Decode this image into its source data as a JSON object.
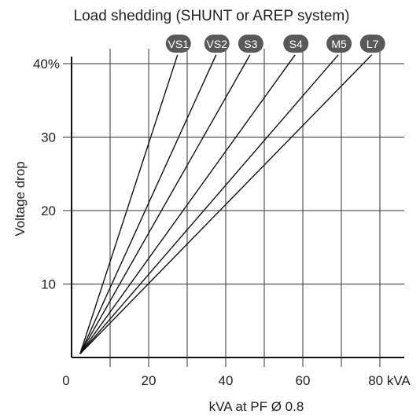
{
  "chart_data": {
    "type": "line",
    "title": "Load shedding (SHUNT or AREP system)",
    "xlabel": "kVA at PF Ø 0.8",
    "ylabel": "Voltage drop",
    "xlim": [
      0,
      88
    ],
    "ylim": [
      0,
      40
    ],
    "x_ticks": [
      {
        "value": 0,
        "label": "0"
      },
      {
        "value": 20,
        "label": "20"
      },
      {
        "value": 40,
        "label": "40"
      },
      {
        "value": 60,
        "label": "60"
      },
      {
        "value": 80,
        "label": "80 kVA"
      }
    ],
    "y_ticks": [
      {
        "value": 10,
        "label": "10"
      },
      {
        "value": 20,
        "label": "20"
      },
      {
        "value": 30,
        "label": "30"
      },
      {
        "value": 40,
        "label": "40%"
      }
    ],
    "grid": true,
    "grid_step_x": 10,
    "grid_step_y": 10,
    "legend": "top, series labels in badges",
    "series": [
      {
        "name": "VS1",
        "x": [
          2.2,
          27.5
        ],
        "y": [
          0.5,
          41.2
        ]
      },
      {
        "name": "VS2",
        "x": [
          2.2,
          37.5
        ],
        "y": [
          0.5,
          41.2
        ]
      },
      {
        "name": "S3",
        "x": [
          2.2,
          46.3
        ],
        "y": [
          0.5,
          41.2
        ]
      },
      {
        "name": "S4",
        "x": [
          2.2,
          58.0
        ],
        "y": [
          0.5,
          41.2
        ]
      },
      {
        "name": "M5",
        "x": [
          2.2,
          69.2
        ],
        "y": [
          0.5,
          41.2
        ]
      },
      {
        "name": "L7",
        "x": [
          2.2,
          77.9
        ],
        "y": [
          0.5,
          41.2
        ]
      }
    ],
    "colors": {
      "line": "#111111",
      "grid": "#333333",
      "badge_fill": "#595959",
      "badge_text": "#ffffff",
      "text": "#222222"
    }
  }
}
